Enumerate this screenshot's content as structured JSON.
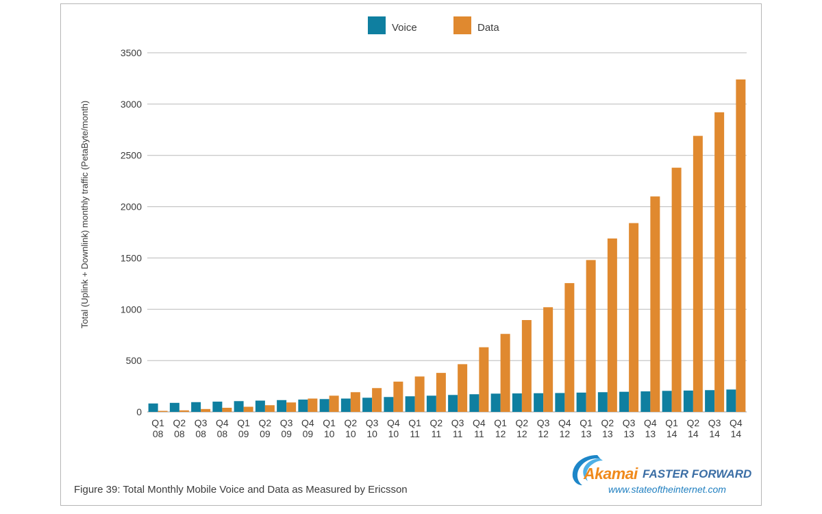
{
  "chart_data": {
    "type": "bar",
    "categories": [
      "Q1\n08",
      "Q2\n08",
      "Q3\n08",
      "Q4\n08",
      "Q1\n09",
      "Q2\n09",
      "Q3\n09",
      "Q4\n09",
      "Q1\n10",
      "Q2\n10",
      "Q3\n10",
      "Q4\n10",
      "Q1\n11",
      "Q2\n11",
      "Q3\n11",
      "Q4\n11",
      "Q1\n12",
      "Q2\n12",
      "Q3\n12",
      "Q4\n12",
      "Q1\n13",
      "Q2\n13",
      "Q3\n13",
      "Q4\n13",
      "Q1\n14",
      "Q2\n14",
      "Q3\n14",
      "Q4\n14"
    ],
    "series": [
      {
        "name": "Voice",
        "color": "#0f7fa0",
        "values": [
          82,
          88,
          95,
          100,
          105,
          110,
          115,
          120,
          125,
          130,
          138,
          145,
          152,
          158,
          165,
          172,
          178,
          180,
          182,
          184,
          188,
          192,
          196,
          200,
          205,
          208,
          212,
          218
        ]
      },
      {
        "name": "Data",
        "color": "#e0892f",
        "values": [
          10,
          15,
          28,
          40,
          50,
          65,
          92,
          130,
          158,
          192,
          232,
          295,
          345,
          380,
          465,
          630,
          760,
          895,
          1020,
          1255,
          1480,
          1690,
          1840,
          2100,
          2380,
          2690,
          2920,
          3240
        ]
      }
    ],
    "ylabel": "Total (Uplink + Downlink) monthly traffic (PetaByte/month)",
    "ylim": [
      0,
      3500
    ],
    "yticks": [
      0,
      500,
      1000,
      1500,
      2000,
      2500,
      3000,
      3500
    ],
    "grid": true,
    "legend_position": "top"
  },
  "caption": "Figure 39: Total Monthly Mobile Voice and Data as Measured by Ericsson",
  "logo": {
    "wordmark": "Akamai",
    "tagline": "FASTER FORWARD",
    "url": "www.stateoftheinternet.com"
  }
}
